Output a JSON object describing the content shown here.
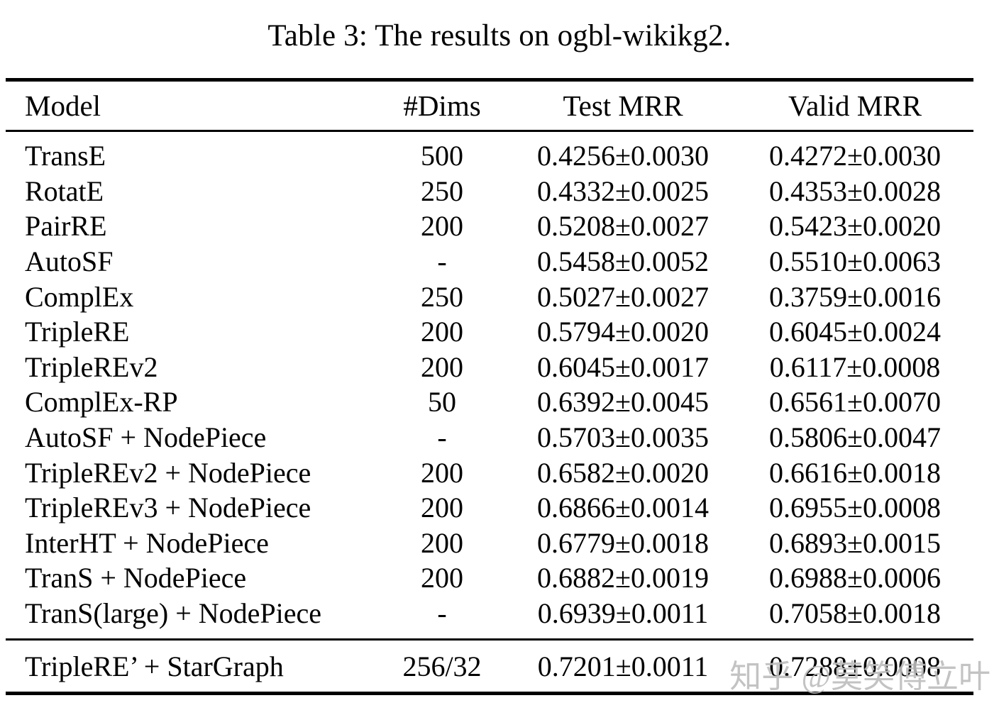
{
  "title": "Table 3: The results on ogbl-wikikg2.",
  "table": {
    "columns": [
      "Model",
      "#Dims",
      "Test MRR",
      "Valid MRR"
    ],
    "rows": [
      [
        "TransE",
        "500",
        "0.4256±0.0030",
        "0.4272±0.0030"
      ],
      [
        "RotatE",
        "250",
        "0.4332±0.0025",
        "0.4353±0.0028"
      ],
      [
        "PairRE",
        "200",
        "0.5208±0.0027",
        "0.5423±0.0020"
      ],
      [
        "AutoSF",
        "-",
        "0.5458±0.0052",
        "0.5510±0.0063"
      ],
      [
        "ComplEx",
        "250",
        "0.5027±0.0027",
        "0.3759±0.0016"
      ],
      [
        "TripleRE",
        "200",
        "0.5794±0.0020",
        "0.6045±0.0024"
      ],
      [
        "TripleREv2",
        "200",
        "0.6045±0.0017",
        "0.6117±0.0008"
      ],
      [
        "ComplEx-RP",
        "50",
        "0.6392±0.0045",
        "0.6561±0.0070"
      ],
      [
        "AutoSF + NodePiece",
        "-",
        "0.5703±0.0035",
        "0.5806±0.0047"
      ],
      [
        "TripleREv2 + NodePiece",
        "200",
        "0.6582±0.0020",
        "0.6616±0.0018"
      ],
      [
        "TripleREv3 + NodePiece",
        "200",
        "0.6866±0.0014",
        "0.6955±0.0008"
      ],
      [
        "InterHT + NodePiece",
        "200",
        "0.6779±0.0018",
        "0.6893±0.0015"
      ],
      [
        "TranS + NodePiece",
        "200",
        "0.6882±0.0019",
        "0.6988±0.0006"
      ],
      [
        "TranS(large) + NodePiece",
        "-",
        "0.6939±0.0011",
        "0.7058±0.0018"
      ]
    ],
    "highlight_rows": [
      [
        "TripleRE’ + StarGraph",
        "256/32",
        "0.7201±0.0011",
        "0.7288±0.0008"
      ]
    ]
  },
  "watermark": "知乎 @莫笑傅立叶",
  "colors": {
    "text": "#000000",
    "background": "#ffffff",
    "rule": "#000000",
    "watermark": "#bdbdbd"
  }
}
